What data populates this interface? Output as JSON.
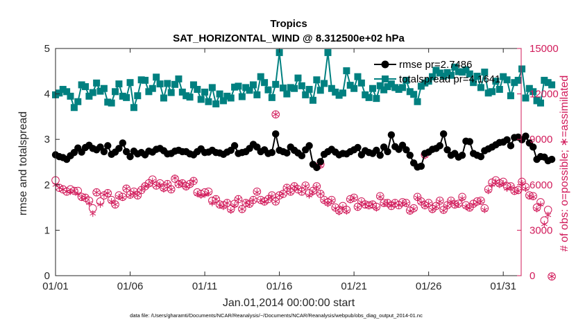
{
  "chart_data": {
    "type": "line",
    "title": "Tropics",
    "subtitle": "SAT_HORIZONTAL_WIND @ 8.312500e+02 hPa",
    "xlabel": "Jan.01,2014 00:00:00 start",
    "ylabel_left": "rmse and totalspread",
    "ylabel_right": "# of obs: o=possible; ∗=assimilated",
    "footnote": "data file: /Users/gharamti/Documents/NCAR/Reanalysis/~/Documents/NCAR/Reanalysis/webpub/obs_diag_output_2014-01.nc",
    "xlim": [
      0,
      31.2
    ],
    "ylim_left": [
      0,
      5
    ],
    "ylim_right": [
      0,
      15000
    ],
    "x_ticks": [
      0,
      5,
      10,
      15,
      20,
      25,
      30
    ],
    "x_tick_labels": [
      "01/01",
      "01/06",
      "01/11",
      "01/16",
      "01/21",
      "01/26",
      "01/31"
    ],
    "y_ticks_left": [
      0,
      1,
      2,
      3,
      4,
      5
    ],
    "y_ticks_right": [
      0,
      3000,
      6000,
      9000,
      12000,
      15000
    ],
    "colors": {
      "rmse": "#000000",
      "spread": "#008080",
      "obs": "#d11a5a",
      "axes": "#262626"
    },
    "legend": [
      "rmse pr=2.7486",
      "totalspread pr=4.1641"
    ],
    "legend_position": "top-right",
    "x_start": 0,
    "x_step": 0.25,
    "series": [
      {
        "name": "rmse",
        "axis": "left",
        "values": [
          2.66,
          2.62,
          2.6,
          2.56,
          2.64,
          2.71,
          2.81,
          2.72,
          2.82,
          2.87,
          2.8,
          2.77,
          2.83,
          2.73,
          2.86,
          2.67,
          2.72,
          2.8,
          2.92,
          2.73,
          2.62,
          2.74,
          2.68,
          2.71,
          2.66,
          2.74,
          2.72,
          2.78,
          2.8,
          2.75,
          2.68,
          2.69,
          2.74,
          2.76,
          2.73,
          2.73,
          2.68,
          2.66,
          2.73,
          2.79,
          2.71,
          2.72,
          2.76,
          2.71,
          2.7,
          2.67,
          2.72,
          2.76,
          2.86,
          2.69,
          2.71,
          2.73,
          2.8,
          2.89,
          2.83,
          2.73,
          2.77,
          2.69,
          2.71,
          3.12,
          2.76,
          2.73,
          2.7,
          2.83,
          2.76,
          2.7,
          2.64,
          2.77,
          2.86,
          2.45,
          2.38,
          2.51,
          2.67,
          2.73,
          2.78,
          2.72,
          2.66,
          2.69,
          2.68,
          2.73,
          2.77,
          2.82,
          2.66,
          2.75,
          2.71,
          2.69,
          2.76,
          2.65,
          2.83,
          2.73,
          3.1,
          2.84,
          2.78,
          2.87,
          2.77,
          2.65,
          2.48,
          2.39,
          2.41,
          2.69,
          2.72,
          2.78,
          2.8,
          2.86,
          3.12,
          2.77,
          2.65,
          2.69,
          2.61,
          2.65,
          2.96,
          2.95,
          2.69,
          2.65,
          2.62,
          2.75,
          2.79,
          2.83,
          2.88,
          2.93,
          2.94,
          2.99,
          2.86,
          3.04,
          3.05,
          2.99,
          3.07,
          2.92,
          2.83,
          2.56,
          2.62,
          2.61,
          2.53,
          2.56
        ]
      },
      {
        "name": "totalspread",
        "axis": "left",
        "values": [
          3.98,
          4.02,
          4.1,
          4.05,
          3.95,
          3.7,
          3.83,
          4.2,
          4.16,
          3.95,
          4.03,
          4.24,
          4.06,
          4.12,
          3.82,
          3.8,
          4.05,
          4.22,
          3.95,
          3.92,
          4.25,
          3.7,
          3.96,
          4.31,
          4.3,
          4.05,
          4.12,
          4.37,
          4.22,
          3.91,
          4.23,
          4.03,
          4.21,
          4.33,
          4.04,
          3.96,
          3.93,
          4.2,
          4.1,
          3.88,
          4.04,
          3.83,
          4.14,
          3.78,
          4.0,
          3.85,
          3.95,
          3.91,
          4.15,
          4.17,
          3.94,
          4.14,
          4.08,
          4.2,
          3.98,
          4.38,
          4.25,
          4.09,
          3.92,
          4.21,
          4.91,
          4.13,
          4.0,
          4.14,
          4.12,
          4.35,
          4.18,
          3.98,
          4.1,
          3.86,
          4.31,
          4.08,
          4.23,
          4.91,
          4.12,
          4.04,
          3.97,
          4.02,
          4.51,
          4.19,
          4.12,
          4.38,
          4.24,
          3.98,
          3.92,
          4.12,
          3.9,
          4.18,
          4.09,
          4.16,
          4.22,
          4.14,
          4.1,
          4.14,
          4.3,
          4.05,
          3.99,
          3.83,
          4.17,
          4.24,
          4.28,
          4.38,
          4.52,
          4.46,
          4.39,
          4.47,
          4.41,
          4.59,
          4.49,
          4.48,
          4.53,
          4.44,
          4.25,
          4.39,
          4.14,
          4.48,
          4.02,
          4.05,
          4.28,
          4.1,
          4.38,
          4.31,
          3.96,
          4.25,
          4.3,
          4.55,
          3.91,
          4.12,
          4.05,
          3.85,
          3.8,
          4.3,
          4.25,
          4.2
        ]
      },
      {
        "name": "obs_possible",
        "axis": "right",
        "values": [
          6300,
          5800,
          5700,
          5550,
          5700,
          5600,
          5600,
          5200,
          5150,
          4950,
          4450,
          5500,
          4900,
          5300,
          5450,
          5000,
          4700,
          5300,
          5200,
          5750,
          5350,
          5550,
          5300,
          5650,
          5900,
          6100,
          6350,
          5950,
          6100,
          5800,
          6050,
          5700,
          6400,
          6050,
          6100,
          5900,
          6050,
          6250,
          5500,
          5400,
          5500,
          5550,
          4950,
          5050,
          4700,
          4650,
          4800,
          4400,
          4750,
          5050,
          4400,
          4800,
          4750,
          5000,
          5550,
          5000,
          4900,
          5050,
          5300,
          4900,
          5300,
          5400,
          5800,
          5550,
          5900,
          5700,
          5550,
          5950,
          5450,
          5600,
          5900,
          5400,
          5000,
          4850,
          5000,
          4500,
          4300,
          4600,
          4350,
          5050,
          5150,
          4550,
          4900,
          4700,
          4650,
          4700,
          4550,
          5250,
          4800,
          4800,
          4600,
          4800,
          4650,
          4850,
          4800,
          4300,
          4450,
          5200,
          4900,
          4650,
          4800,
          4400,
          4600,
          4950,
          4350,
          4650,
          4950,
          4700,
          4750,
          5200,
          4650,
          4500,
          4750,
          4900,
          4950,
          4450,
          5700,
          6150,
          6300,
          6100,
          6200,
          5900,
          5900,
          5600,
          5650,
          6200,
          5850,
          5300,
          5250,
          4500,
          4850,
          3650,
          4350,
          -50
        ]
      },
      {
        "name": "obs_assimilated",
        "axis": "right",
        "values": [
          6000,
          5800,
          5700,
          5550,
          5550,
          5600,
          5400,
          5150,
          5150,
          4800,
          4100,
          5500,
          4700,
          5350,
          5450,
          4900,
          4700,
          5200,
          5150,
          5750,
          5300,
          5500,
          5300,
          5650,
          5900,
          6000,
          6250,
          5950,
          6000,
          5700,
          6050,
          5700,
          6450,
          6050,
          6100,
          5850,
          6000,
          6250,
          5400,
          5300,
          5350,
          5450,
          4800,
          5050,
          4650,
          4550,
          4800,
          4300,
          4650,
          5050,
          4400,
          4800,
          4700,
          5000,
          5500,
          4950,
          4850,
          5050,
          5250,
          4900,
          5300,
          5400,
          5800,
          5500,
          5900,
          5700,
          5550,
          5900,
          5300,
          5500,
          5850,
          5400,
          4950,
          4750,
          4950,
          4450,
          4200,
          4500,
          4250,
          5000,
          5100,
          4500,
          4850,
          4700,
          4600,
          4700,
          4450,
          5200,
          4750,
          4800,
          4600,
          4800,
          4650,
          4800,
          4750,
          4250,
          4400,
          5150,
          4850,
          4600,
          4750,
          4350,
          4550,
          4900,
          4300,
          4600,
          4900,
          4700,
          4700,
          5100,
          4550,
          4450,
          4700,
          4850,
          4900,
          4350,
          5600,
          6000,
          6200,
          6000,
          6100,
          5750,
          5850,
          5550,
          5600,
          6100,
          5750,
          5250,
          5200,
          4400,
          4700,
          3400,
          4000,
          -50
        ]
      }
    ],
    "outliers": [
      {
        "name": "obs_possible",
        "x": 14.75,
        "value": 10650
      },
      {
        "name": "obs_assimilated",
        "x": 14.75,
        "value": 10650
      },
      {
        "name": "obs_possible",
        "x": 17.75,
        "value": 7350
      },
      {
        "name": "obs_assimilated",
        "x": 17.75,
        "value": 7250
      },
      {
        "name": "obs_possible",
        "x": 24.75,
        "value": 8000
      },
      {
        "name": "obs_assimilated",
        "x": 24.75,
        "value": 7900
      }
    ]
  }
}
